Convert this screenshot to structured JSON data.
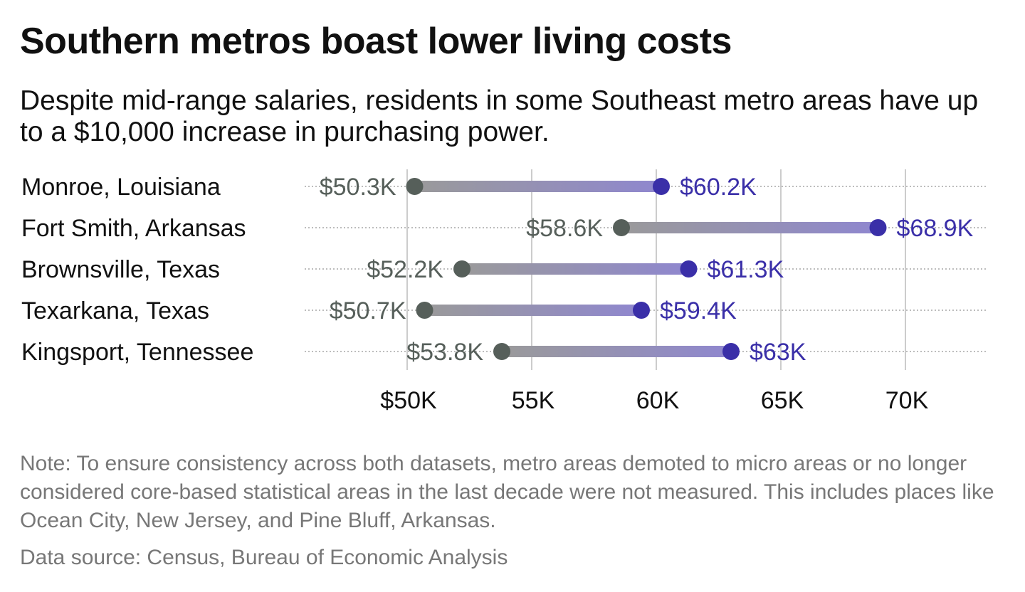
{
  "title": "Southern metros boast lower living costs",
  "subtitle": "Despite mid-range salaries, residents in some Southeast metro areas have up to a $10,000 increase in purchasing power.",
  "note": "Note: To ensure consistency across both datasets, metro areas demoted to micro areas or no longer considered core-based statistical areas in the last decade were not measured. This includes places like Ocean City, New Jersey, and Pine Bluff, Arkansas.",
  "source": "Data source: Census, Bureau of Economic Analysis",
  "colors": {
    "start": "#565f5a",
    "end": "#3a2fa8",
    "bar_start": "#9a9a9a",
    "bar_end": "#8f87cf",
    "grid": "#bbbbbb",
    "row_dots": "#bdbdbd"
  },
  "chart_data": {
    "type": "dumbbell",
    "categories": [
      "Monroe, Louisiana",
      "Fort Smith, Arkansas",
      "Brownsville, Texas",
      "Texarkana, Texas",
      "Kingsport, Tennessee"
    ],
    "start_values": [
      50.3,
      58.6,
      52.2,
      50.7,
      53.8
    ],
    "end_values": [
      60.2,
      68.9,
      61.3,
      59.4,
      63.0
    ],
    "start_labels": [
      "$50.3K",
      "$58.6K",
      "$52.2K",
      "$50.7K",
      "$53.8K"
    ],
    "end_labels": [
      "$60.2K",
      "$68.9K",
      "$61.3K",
      "$59.4K",
      "$63K"
    ],
    "x_ticks": [
      50,
      55,
      60,
      65,
      70
    ],
    "x_tick_labels": [
      "$50K",
      "55K",
      "60K",
      "65K",
      "70K"
    ],
    "xlim": [
      50,
      70
    ],
    "grid": true
  }
}
